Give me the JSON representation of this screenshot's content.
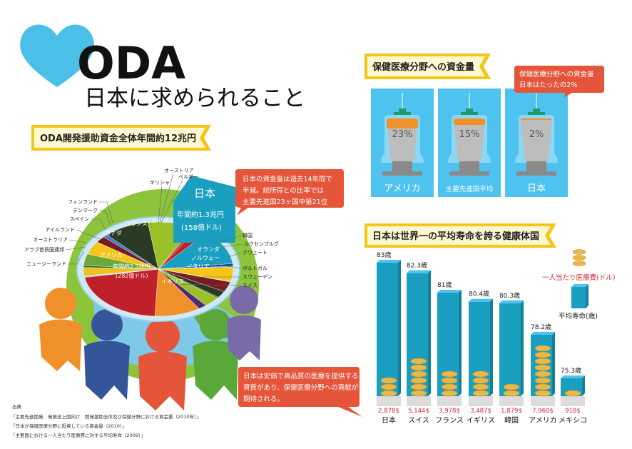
{
  "title": {
    "main": "ODA",
    "sub": "日本に求められること"
  },
  "oda_section": {
    "banner": "ODA開発援助資金全体年間約12兆円",
    "japan_box": {
      "name": "日本",
      "amount": "年間約1.3兆円",
      "amount_usd": "(158億ドル)"
    },
    "us_box": {
      "name": "アメリカ",
      "amount": "年間約2.3兆円",
      "amount_usd": "(282億ドル)"
    },
    "callout": [
      "日本の資金量は過去14年間で",
      "半減。総所得との比率では",
      "主要先進国23ヶ国中第21位"
    ]
  },
  "health_funding": {
    "banner": "保健医療分野への資金量",
    "callout": [
      "保健医療分野への資金量",
      "日本はたったの2%"
    ],
    "panels": [
      {
        "label": "アメリカ",
        "percent": 23,
        "percent_label": "23%"
      },
      {
        "label": "主要先進国平均",
        "percent": 15,
        "percent_label": "15%"
      },
      {
        "label": "日本",
        "percent": 2,
        "percent_label": "2%"
      }
    ]
  },
  "life_section": {
    "banner": "日本は世界一の平均寿命を誇る健康体国",
    "legend": {
      "spend": "一人当たり医療費(ドル)",
      "life": "平均寿命(歳)"
    },
    "callout": [
      "日本は安価で高品質の医療を提供する",
      "資質があり、保健医療分野への貢献が",
      "期待される。"
    ]
  },
  "sources": {
    "heading": "出典",
    "items": [
      "「主要先進国発　発展途上国向け　開発援助全体及び保健分野における資金量（2010年）」",
      "「日本が保健医療分野に投資している資金量（2010）」",
      "「主要国における一人当たり医療費に対する平均寿命（2009）」"
    ]
  },
  "colors": {
    "accent_blue": "#4fc3ef",
    "teal": "#1a9fc0",
    "callout_orange": "#e4553a",
    "banner_yellow": "#f5c518",
    "spend_red": "#d22a3a"
  },
  "chart_data": [
    {
      "type": "pie",
      "title": "ODA開発援助資金全体年間約12兆円",
      "unit": "億ドル (estimated)",
      "categories": [
        "日本",
        "韓国",
        "ルクセンブルグ",
        "オランダ",
        "クウェート",
        "ノルウェー",
        "イタリア",
        "ポルトガル",
        "スウェーデン",
        "スイス",
        "イギリス",
        "アメリカ",
        "ニュージーランド",
        "アラブ首長国連邦",
        "オーストラリア",
        "アイルランド",
        "カナダ",
        "スペイン",
        "デンマーク",
        "フィンランド",
        "フランス",
        "ドイツ",
        "ギリシャ",
        "オーストリア",
        "ベルギー"
      ],
      "values": [
        158,
        12,
        4,
        64,
        3,
        46,
        30,
        6,
        45,
        23,
        131,
        282,
        3,
        4,
        38,
        9,
        52,
        60,
        29,
        13,
        129,
        129,
        5,
        12,
        30
      ],
      "colors": [
        "#1a9fc0",
        "#1a4aa0",
        "#3a7ac8",
        "#f5c518",
        "#e8d040",
        "#7a1a22",
        "#2b3a22",
        "#6a8a2a",
        "#9cc02a",
        "#4a2a7a",
        "#f0902a",
        "#c0202a",
        "#4aa0d0",
        "#a0c8e0",
        "#f0c020",
        "#2b6a2a",
        "#6aa83a",
        "#f5c518",
        "#7a1a22",
        "#3a7ac8",
        "#2b3a22",
        "#9cc02a",
        "#5a8ac0",
        "#d04020",
        "#c0202a"
      ]
    },
    {
      "type": "bar",
      "title": "日本は世界一の平均寿命を誇る健康体国",
      "categories": [
        "日本",
        "スイス",
        "フランス",
        "イギリス",
        "韓国",
        "アメリカ",
        "メキシコ"
      ],
      "series": [
        {
          "name": "平均寿命(歳)",
          "values": [
            83,
            82.3,
            81,
            80.4,
            80.3,
            78.2,
            75.3
          ],
          "labels": [
            "83歳",
            "82.3歳",
            "81歳",
            "80.4歳",
            "80.3歳",
            "78.2歳",
            "75.3歳"
          ]
        },
        {
          "name": "一人当たり医療費(ドル)",
          "values": [
            2878,
            5144,
            3978,
            3487,
            1879,
            7960,
            918
          ],
          "labels": [
            "2,878$",
            "5,144$",
            "3,978$",
            "3,487$",
            "1,879$",
            "7,960$",
            "918$"
          ]
        }
      ]
    }
  ]
}
